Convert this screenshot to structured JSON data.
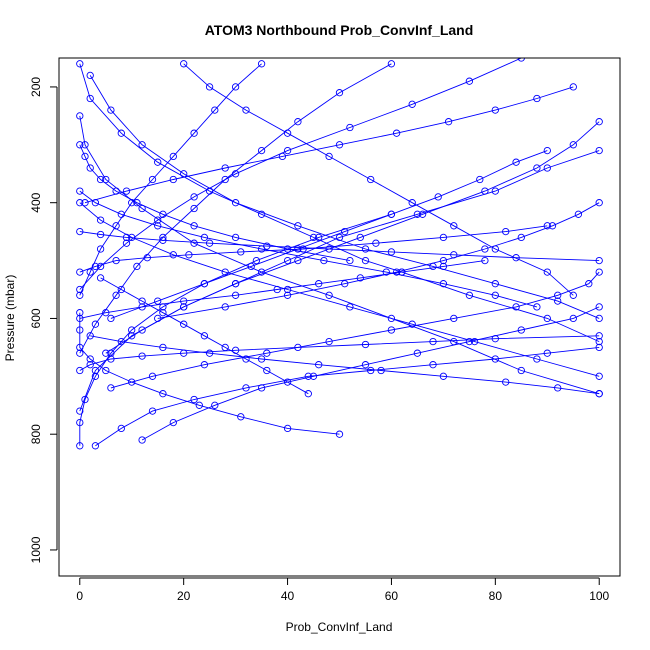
{
  "chart_data": {
    "type": "line",
    "title": "ATOM3 Northbound Prob_ConvInf_Land",
    "xlabel": "Prob_ConvInf_Land",
    "ylabel": "Pressure (mbar)",
    "xlim": [
      -4,
      104
    ],
    "ylim": [
      1045,
      150
    ],
    "y_reversed": true,
    "xticks": [
      0,
      20,
      40,
      60,
      80,
      100
    ],
    "yticks": [
      200,
      400,
      600,
      800,
      1000
    ],
    "grid": false,
    "legend": "none",
    "line_color": "#0000ff",
    "marker": "open-circle",
    "series": [
      {
        "x": [
          0,
          2,
          8,
          15,
          25,
          35,
          45,
          55,
          62,
          75,
          90,
          100
        ],
        "y": [
          160,
          220,
          280,
          330,
          380,
          420,
          460,
          500,
          520,
          560,
          600,
          640
        ]
      },
      {
        "x": [
          0,
          1,
          5,
          12,
          22,
          35,
          48,
          60,
          72,
          85,
          100
        ],
        "y": [
          250,
          300,
          360,
          410,
          470,
          520,
          560,
          600,
          640,
          690,
          730
        ]
      },
      {
        "x": [
          2,
          6,
          12,
          20,
          30,
          42,
          55,
          68,
          80,
          92,
          100
        ],
        "y": [
          180,
          240,
          300,
          350,
          400,
          440,
          480,
          510,
          540,
          570,
          600
        ]
      },
      {
        "x": [
          100,
          90,
          80,
          65,
          50,
          40,
          30,
          20,
          10,
          3,
          0
        ],
        "y": [
          310,
          340,
          380,
          420,
          460,
          500,
          540,
          580,
          630,
          690,
          760
        ]
      },
      {
        "x": [
          0,
          4,
          10,
          18,
          28,
          40,
          52,
          64,
          76,
          88,
          100
        ],
        "y": [
          400,
          430,
          460,
          490,
          520,
          550,
          580,
          610,
          640,
          670,
          700
        ]
      },
      {
        "x": [
          20,
          25,
          32,
          40,
          48,
          56,
          64,
          72,
          80,
          90,
          95
        ],
        "y": [
          160,
          200,
          240,
          280,
          320,
          360,
          400,
          440,
          480,
          520,
          560
        ]
      },
      {
        "x": [
          0,
          0,
          1,
          3,
          6,
          10,
          16,
          24,
          34,
          46,
          60
        ],
        "y": [
          820,
          780,
          740,
          700,
          660,
          620,
          580,
          540,
          500,
          460,
          420
        ]
      },
      {
        "x": [
          60,
          50,
          42,
          35,
          28,
          22,
          16,
          11,
          7,
          3,
          0
        ],
        "y": [
          160,
          210,
          260,
          310,
          360,
          410,
          460,
          510,
          560,
          610,
          660
        ]
      },
      {
        "x": [
          100,
          95,
          88,
          78,
          66,
          54,
          42,
          30,
          20,
          12,
          5
        ],
        "y": [
          260,
          300,
          340,
          380,
          420,
          460,
          500,
          540,
          580,
          620,
          660
        ]
      },
      {
        "x": [
          12,
          18,
          26,
          35,
          45,
          55,
          65,
          75,
          85,
          95,
          100
        ],
        "y": [
          810,
          780,
          750,
          720,
          700,
          680,
          660,
          640,
          620,
          600,
          580
        ]
      },
      {
        "x": [
          3,
          8,
          14,
          22,
          32,
          44,
          56,
          68,
          80,
          90,
          100
        ],
        "y": [
          820,
          790,
          760,
          740,
          720,
          700,
          690,
          680,
          670,
          660,
          650
        ]
      },
      {
        "x": [
          0,
          3,
          7,
          13,
          21,
          31,
          43,
          57,
          70,
          82,
          90
        ],
        "y": [
          520,
          510,
          500,
          495,
          490,
          485,
          480,
          470,
          460,
          450,
          440
        ]
      },
      {
        "x": [
          85,
          75,
          64,
          52,
          40,
          30,
          22,
          15,
          9,
          4,
          0
        ],
        "y": [
          150,
          190,
          230,
          270,
          310,
          350,
          390,
          430,
          470,
          510,
          550
        ]
      },
      {
        "x": [
          0,
          5,
          12,
          20,
          30,
          38,
          46,
          54,
          62,
          70,
          78
        ],
        "y": [
          600,
          590,
          580,
          570,
          560,
          550,
          540,
          530,
          520,
          510,
          500
        ]
      },
      {
        "x": [
          100,
          92,
          82,
          70,
          58,
          46,
          35,
          25,
          16,
          8,
          2
        ],
        "y": [
          730,
          720,
          710,
          700,
          690,
          680,
          670,
          660,
          650,
          640,
          630
        ]
      },
      {
        "x": [
          50,
          40,
          31,
          23,
          16,
          10,
          5,
          2,
          0,
          0,
          0
        ],
        "y": [
          800,
          790,
          770,
          750,
          730,
          710,
          690,
          670,
          650,
          620,
          590
        ]
      },
      {
        "x": [
          0,
          1,
          2,
          4,
          7,
          11,
          16,
          22,
          30,
          40,
          52
        ],
        "y": [
          300,
          320,
          340,
          360,
          380,
          400,
          420,
          440,
          460,
          480,
          500
        ]
      },
      {
        "x": [
          90,
          84,
          77,
          69,
          60,
          51,
          42,
          33,
          24,
          15,
          6
        ],
        "y": [
          310,
          330,
          360,
          390,
          420,
          450,
          480,
          510,
          540,
          570,
          600
        ]
      },
      {
        "x": [
          6,
          14,
          24,
          36,
          48,
          60,
          72,
          84,
          92,
          98,
          100
        ],
        "y": [
          720,
          700,
          680,
          660,
          640,
          620,
          600,
          580,
          560,
          540,
          520
        ]
      },
      {
        "x": [
          0,
          2,
          6,
          12,
          20,
          30,
          42,
          55,
          68,
          80,
          100
        ],
        "y": [
          690,
          680,
          670,
          665,
          660,
          655,
          650,
          645,
          640,
          635,
          630
        ]
      },
      {
        "x": [
          35,
          30,
          26,
          22,
          18,
          14,
          10,
          7,
          4,
          2,
          0
        ],
        "y": [
          160,
          200,
          240,
          280,
          320,
          360,
          400,
          440,
          480,
          520,
          560
        ]
      },
      {
        "x": [
          100,
          96,
          91,
          85,
          78,
          70,
          61,
          51,
          40,
          28,
          15
        ],
        "y": [
          400,
          420,
          440,
          460,
          480,
          500,
          520,
          540,
          560,
          580,
          600
        ]
      },
      {
        "x": [
          0,
          4,
          9,
          16,
          25,
          36,
          48,
          60,
          72,
          84,
          100
        ],
        "y": [
          450,
          455,
          460,
          465,
          470,
          475,
          480,
          485,
          490,
          495,
          500
        ]
      },
      {
        "x": [
          44,
          40,
          36,
          32,
          28,
          24,
          20,
          16,
          12,
          8,
          4
        ],
        "y": [
          730,
          710,
          690,
          670,
          650,
          630,
          610,
          590,
          570,
          550,
          530
        ]
      },
      {
        "x": [
          0,
          3,
          8,
          15,
          24,
          35,
          47,
          59,
          70,
          80,
          88
        ],
        "y": [
          380,
          400,
          420,
          440,
          460,
          480,
          500,
          520,
          540,
          560,
          580
        ]
      },
      {
        "x": [
          95,
          88,
          80,
          71,
          61,
          50,
          39,
          28,
          18,
          9,
          1
        ],
        "y": [
          200,
          220,
          240,
          260,
          280,
          300,
          320,
          340,
          360,
          380,
          400
        ]
      }
    ]
  }
}
